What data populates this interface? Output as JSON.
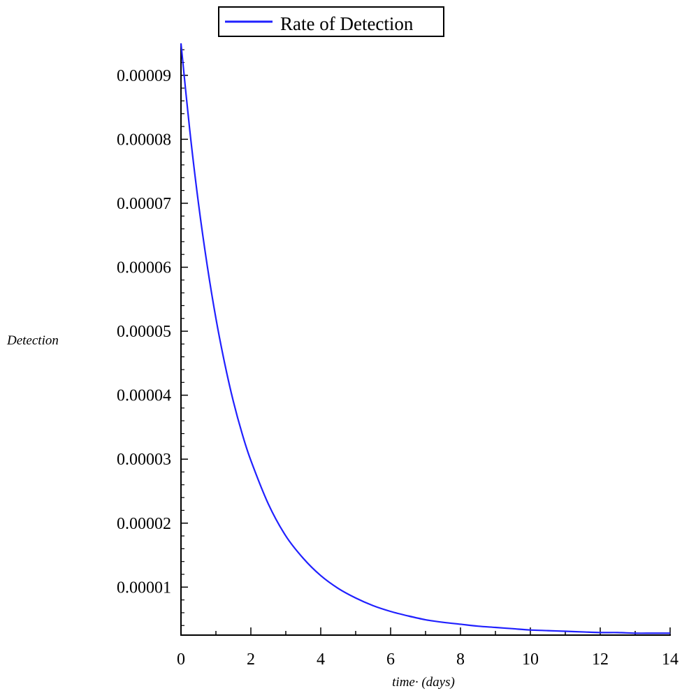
{
  "chart_data": {
    "type": "line",
    "title": "",
    "xlabel": "time· (days)",
    "ylabel": "Detection",
    "xlim": [
      0,
      14
    ],
    "ylim": [
      2.5e-06,
      9.5e-05
    ],
    "x_ticks": [
      0,
      2,
      4,
      6,
      8,
      10,
      12,
      14
    ],
    "x_tick_labels": [
      "0",
      "2",
      "4",
      "6",
      "8",
      "10",
      "12",
      "14"
    ],
    "y_ticks": [
      1e-05,
      2e-05,
      3e-05,
      4e-05,
      5e-05,
      6e-05,
      7e-05,
      8e-05,
      9e-05
    ],
    "y_tick_labels": [
      "0.00001",
      "0.00002",
      "0.00003",
      "0.00004",
      "0.00005",
      "0.00006",
      "0.00007",
      "0.00008",
      "0.00009"
    ],
    "grid": false,
    "legend": {
      "placement": "top-center",
      "entries": [
        "Rate of Detection"
      ]
    },
    "colors": {
      "line": "#2020ff",
      "axis": "#000000",
      "legend_border": "#000000"
    },
    "series": [
      {
        "name": "Rate of Detection",
        "x": [
          0,
          0.25,
          0.5,
          0.75,
          1,
          1.25,
          1.5,
          1.75,
          2,
          2.5,
          3,
          3.5,
          4,
          4.5,
          5,
          5.5,
          6,
          6.5,
          7,
          7.5,
          8,
          8.5,
          9,
          9.5,
          10,
          10.5,
          11,
          11.5,
          12,
          12.5,
          13,
          13.5,
          14
        ],
        "y": [
          9.5e-05,
          8.15e-05,
          7e-05,
          6.03e-05,
          5.2e-05,
          4.5e-05,
          3.9e-05,
          3.4e-05,
          2.98e-05,
          2.3e-05,
          1.8e-05,
          1.45e-05,
          1.18e-05,
          9.8e-06,
          8.3e-06,
          7.1e-06,
          6.2e-06,
          5.5e-06,
          4.9e-06,
          4.5e-06,
          4.2e-06,
          3.9e-06,
          3.7e-06,
          3.5e-06,
          3.3e-06,
          3.2e-06,
          3.1e-06,
          3e-06,
          2.9e-06,
          2.9e-06,
          2.8e-06,
          2.8e-06,
          2.8e-06
        ]
      }
    ]
  }
}
